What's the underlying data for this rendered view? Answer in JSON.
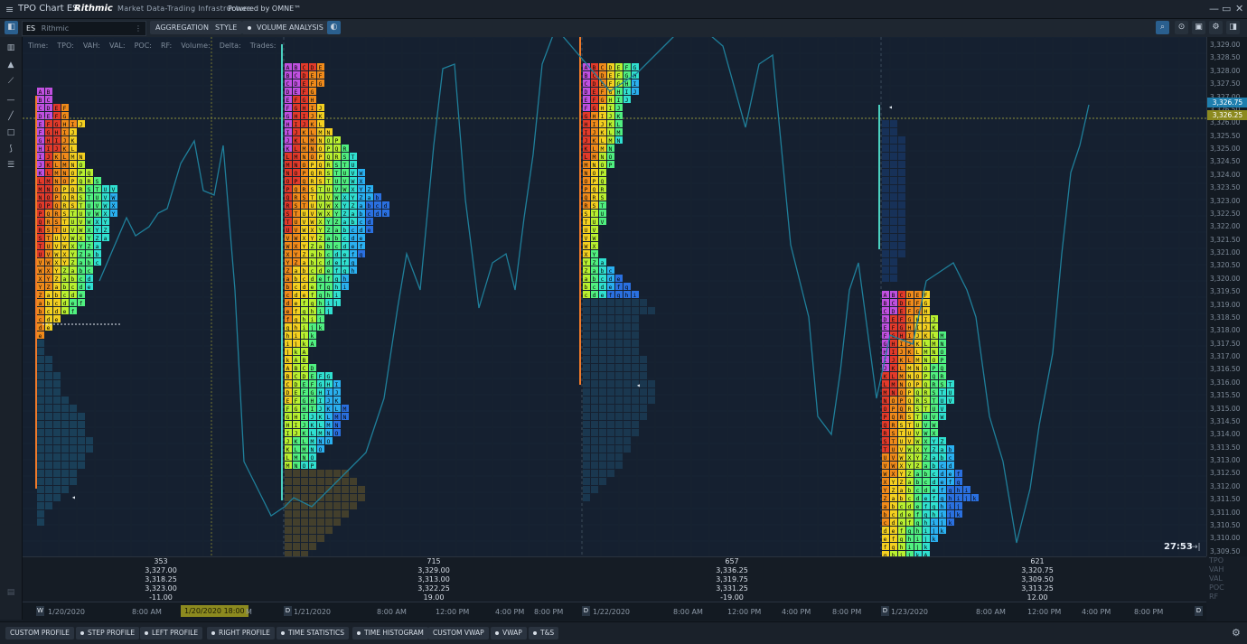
{
  "window": {
    "title": "TPO Chart ES",
    "brand": "Rithmic",
    "brand_sub": "Market Data-Trading Infrastructure",
    "powered": "Powered by OMNE™"
  },
  "toolbar": {
    "symbol": "ES",
    "symbol_source": "Rithmic",
    "aggregation": "AGGREGATION",
    "style": "STYLE",
    "volume_analysis": "VOLUME ANALYSIS"
  },
  "legend": [
    "Time:",
    "TPO:",
    "VAH:",
    "VAL:",
    "POC:",
    "RF:",
    "Volume:",
    "Delta:",
    "Trades:"
  ],
  "price_axis": {
    "ticks": [
      "3,329.00",
      "3,328.50",
      "3,328.00",
      "3,327.50",
      "3,327.00",
      "3,326.50",
      "3,326.00",
      "3,325.50",
      "3,325.00",
      "3,324.50",
      "3,324.00",
      "3,323.50",
      "3,323.00",
      "3,322.50",
      "3,322.00",
      "3,321.50",
      "3,321.00",
      "3,320.50",
      "3,320.00",
      "3,319.50",
      "3,319.00",
      "3,318.50",
      "3,318.00",
      "3,317.50",
      "3,317.00",
      "3,316.50",
      "3,316.00",
      "3,315.50",
      "3,315.00",
      "3,314.50",
      "3,314.00",
      "3,313.50",
      "3,313.00",
      "3,312.50",
      "3,312.00",
      "3,311.50",
      "3,311.00",
      "3,310.50",
      "3,310.00",
      "3,309.50"
    ],
    "last_price": "3,326.75",
    "cursor_price": "3,326.25",
    "last_color": "#1f7fae",
    "cursor_color": "#8c8a1f"
  },
  "timer": "27:53",
  "stat_labels": [
    "TPO",
    "VAH",
    "VAL",
    "POC",
    "RF"
  ],
  "sessions": [
    {
      "tpo": "353",
      "vah": "3,327.00",
      "val": "3,318.25",
      "poc": "3,323.00",
      "rf": "-11.00"
    },
    {
      "tpo": "715",
      "vah": "3,329.00",
      "val": "3,313.00",
      "poc": "3,322.25",
      "rf": "19.00"
    },
    {
      "tpo": "657",
      "vah": "3,336.25",
      "val": "3,319.75",
      "poc": "3,331.25",
      "rf": "-19.00"
    },
    {
      "tpo": "621",
      "vah": "3,320.75",
      "val": "3,309.50",
      "poc": "3,313.25",
      "rf": "12.00"
    }
  ],
  "time_axis": {
    "badges": [
      "W",
      "D",
      "D",
      "D",
      "D"
    ],
    "dates": [
      "1/20/2020",
      "1/21/2020",
      "1/22/2020",
      "1/23/2020"
    ],
    "cursor_time": "1/20/2020 18:00",
    "cursor_tail": "M",
    "ticks": [
      "8:00 AM",
      "8:00 AM",
      "12:00 PM",
      "4:00 PM",
      "8:00 PM",
      "8:00 AM",
      "12:00 PM",
      "4:00 PM",
      "8:00 PM",
      "8:00 AM",
      "12:00 PM",
      "4:00 PM",
      "8:00 PM"
    ]
  },
  "bottom_buttons": [
    "CUSTOM PROFILE",
    "STEP PROFILE",
    "LEFT PROFILE",
    "RIGHT PROFILE",
    "TIME STATISTICS",
    "TIME HISTOGRAM",
    "CUSTOM VWAP",
    "VWAP",
    "T&S"
  ]
}
